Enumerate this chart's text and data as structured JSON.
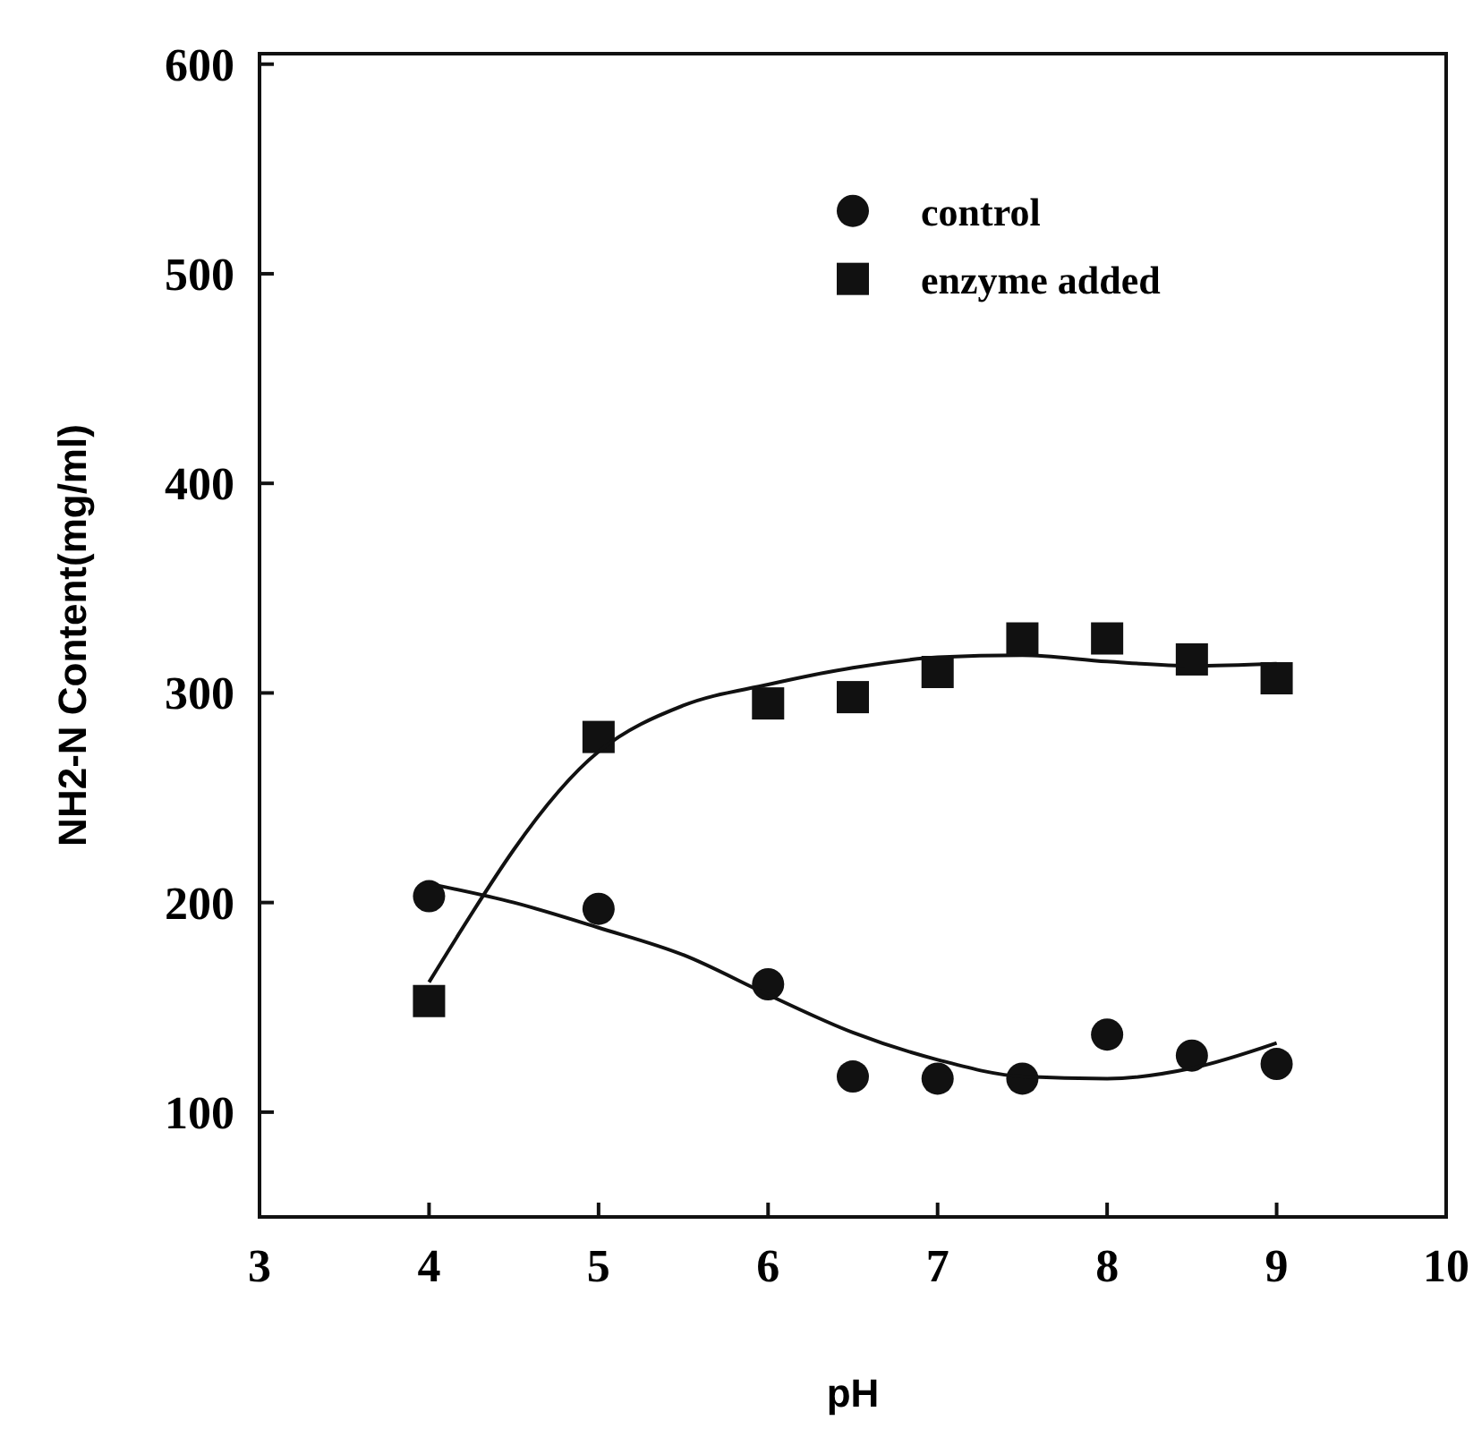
{
  "chart_data": {
    "type": "scatter",
    "xlabel": "pH",
    "ylabel": "NH2-N Content(mg/ml)",
    "xlim": [
      3,
      10
    ],
    "xticks": [
      3,
      4,
      5,
      6,
      7,
      8,
      9,
      10
    ],
    "ylim": [
      50,
      605
    ],
    "yticks": [
      100,
      200,
      300,
      400,
      500,
      600
    ],
    "grid": false,
    "legend": "top right",
    "series": [
      {
        "name": "control",
        "color": "#111111",
        "marker": "circle",
        "x": [
          4,
          5,
          6,
          6.5,
          7,
          7.5,
          8,
          8.5,
          9
        ],
        "values": [
          203,
          197,
          161,
          117,
          116,
          116,
          137,
          127,
          123
        ]
      },
      {
        "name": "enzyme added",
        "color": "#111111",
        "marker": "square",
        "x": [
          4,
          5,
          6,
          6.5,
          7,
          7.5,
          8,
          8.5,
          9
        ],
        "values": [
          153,
          279,
          295,
          298,
          310,
          326,
          326,
          316,
          307
        ]
      },
      {
        "type": "line",
        "color": "#111111",
        "marker": "none",
        "x": [
          4,
          4.5,
          5,
          5.5,
          6,
          6.5,
          7,
          7.5,
          8,
          8.5,
          9
        ],
        "values": [
          209,
          200,
          188,
          175,
          156,
          138,
          125,
          117,
          116,
          121,
          133
        ]
      },
      {
        "type": "line",
        "color": "#111111",
        "marker": "none",
        "x": [
          4,
          5,
          5.5,
          6,
          6.5,
          7,
          7.5,
          8,
          8.5,
          9
        ],
        "values": [
          162,
          272,
          294,
          304,
          312,
          317,
          318,
          315,
          313,
          314
        ]
      }
    ]
  }
}
